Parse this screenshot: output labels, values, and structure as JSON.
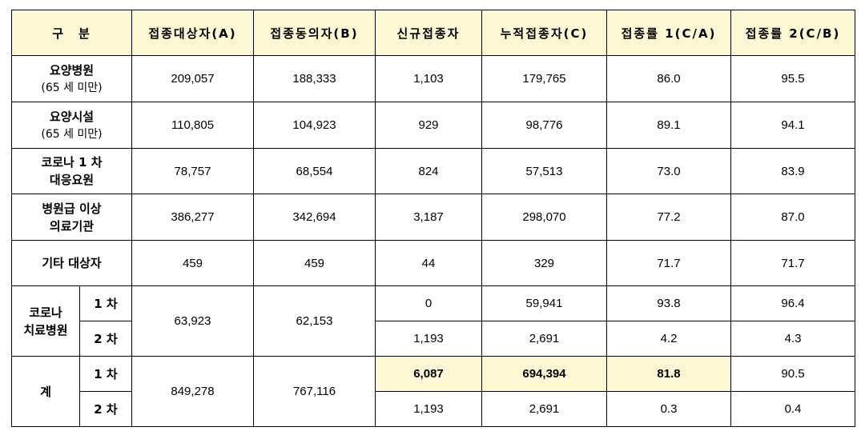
{
  "headers": [
    "구　분",
    "접종대상자(A)",
    "접종동의자(B)",
    "신규접종자",
    "누적접종자(C)",
    "접종률 1(C/A)",
    "접종률 2(C/B)"
  ],
  "rows": [
    {
      "label": "요양병원",
      "sub": "(65 세 미만)",
      "a": "209,057",
      "b": "188,333",
      "new": "1,103",
      "cum": "179,765",
      "r1": "86.0",
      "r2": "95.5"
    },
    {
      "label": "요양시설",
      "sub": "(65 세 미만)",
      "a": "110,805",
      "b": "104,923",
      "new": "929",
      "cum": "98,776",
      "r1": "89.1",
      "r2": "94.1"
    },
    {
      "label": "코로나 1 차",
      "sub": "대응요원",
      "a": "78,757",
      "b": "68,554",
      "new": "824",
      "cum": "57,513",
      "r1": "73.0",
      "r2": "83.9"
    },
    {
      "label": "병원급 이상",
      "sub": "의료기관",
      "a": "386,277",
      "b": "342,694",
      "new": "3,187",
      "cum": "298,070",
      "r1": "77.2",
      "r2": "87.0"
    },
    {
      "label": "기타 대상자",
      "sub": "",
      "a": "459",
      "b": "459",
      "new": "44",
      "cum": "329",
      "r1": "71.7",
      "r2": "71.7"
    }
  ],
  "covid_hospital": {
    "label_line1": "코로나",
    "label_line2": "치료병원",
    "a": "63,923",
    "b": "62,153",
    "dose1": {
      "label": "1 차",
      "new": "0",
      "cum": "59,941",
      "r1": "93.8",
      "r2": "96.4"
    },
    "dose2": {
      "label": "2 차",
      "new": "1,193",
      "cum": "2,691",
      "r1": "4.2",
      "r2": "4.3"
    }
  },
  "total": {
    "label": "계",
    "a": "849,278",
    "b": "767,116",
    "dose1": {
      "label": "1 차",
      "new": "6,087",
      "cum": "694,394",
      "r1": "81.8",
      "r2": "90.5"
    },
    "dose2": {
      "label": "2 차",
      "new": "1,193",
      "cum": "2,691",
      "r1": "0.3",
      "r2": "0.4"
    }
  },
  "highlight_color": "#fdf7d4"
}
